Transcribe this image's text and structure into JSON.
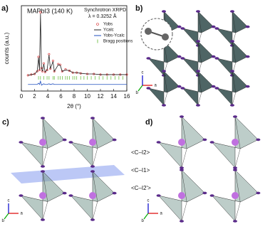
{
  "panels": [
    {
      "label": "a)"
    },
    {
      "label": "b)"
    },
    {
      "label": "c)"
    },
    {
      "label": "d)"
    }
  ],
  "chart_data": {
    "type": "line",
    "title": "MAPbI3 (140 K)",
    "annotations": [
      "Synchrotron XRPD",
      "λ = 0.3252 Å"
    ],
    "x_label": "2θ (°)",
    "y_label": "counts (a.u.)",
    "x": [
      1,
      1.5,
      2,
      2.4,
      2.6,
      2.75,
      2.9,
      3.05,
      3.2,
      3.4,
      3.6,
      3.9,
      4.2,
      4.4,
      4.8,
      5.0,
      5.6,
      5.9,
      6.2,
      6.7,
      7.3,
      7.8,
      8.4,
      9,
      10,
      11,
      12,
      13,
      14,
      15,
      16
    ],
    "series": [
      {
        "name": "Yobs",
        "color": "#d62728",
        "values": [
          0.04,
          0.05,
          0.06,
          0.1,
          0.32,
          0.12,
          1.0,
          0.15,
          0.1,
          0.22,
          0.09,
          0.12,
          0.36,
          0.14,
          0.26,
          0.1,
          0.21,
          0.2,
          0.1,
          0.13,
          0.11,
          0.08,
          0.08,
          0.07,
          0.06,
          0.06,
          0.05,
          0.05,
          0.05,
          0.05,
          0.05
        ]
      },
      {
        "name": "Ycalc",
        "color": "#222222",
        "values": [
          0.04,
          0.05,
          0.06,
          0.1,
          0.31,
          0.12,
          0.98,
          0.15,
          0.1,
          0.21,
          0.09,
          0.12,
          0.35,
          0.14,
          0.25,
          0.1,
          0.2,
          0.19,
          0.1,
          0.12,
          0.11,
          0.08,
          0.08,
          0.07,
          0.06,
          0.06,
          0.05,
          0.05,
          0.05,
          0.05,
          0.05
        ]
      },
      {
        "name": "Yobs-Ycalc",
        "color": "#1f4fbf",
        "values": [
          -0.1,
          -0.1,
          -0.1,
          -0.1,
          -0.08,
          -0.1,
          -0.05,
          -0.11,
          -0.1,
          -0.09,
          -0.1,
          -0.1,
          -0.09,
          -0.1,
          -0.09,
          -0.1,
          -0.1,
          -0.1,
          -0.1,
          -0.1,
          -0.1,
          -0.1,
          -0.1,
          -0.1,
          -0.1,
          -0.1,
          -0.1,
          -0.1,
          -0.1,
          -0.1,
          -0.1
        ]
      }
    ],
    "bragg": {
      "name": "Bragg positions",
      "color": "#5cb82e",
      "x": [
        2.6,
        2.9,
        3.4,
        3.9,
        4.2,
        4.8,
        5.0,
        5.6,
        5.9,
        6.2,
        6.7,
        7.0,
        7.3,
        7.8,
        8.1,
        8.4,
        9.0,
        9.5,
        10.0,
        10.6,
        11.2,
        11.8,
        12.4,
        13.0,
        13.6,
        14.2,
        14.8,
        15.4
      ],
      "values": [
        0.0,
        0.0,
        0.0,
        0.0,
        0.0,
        0.0,
        0.0,
        0.0,
        0.0,
        0.0,
        0.0,
        0.0,
        0.0,
        0.0,
        0.0,
        0.0,
        0.0,
        0.0,
        0.0,
        0.0,
        0.0,
        0.0,
        0.0,
        0.0,
        0.0,
        0.0,
        0.0,
        0.0
      ]
    },
    "xlim": [
      0,
      16
    ],
    "xticks": [
      0,
      2,
      4,
      6,
      8,
      10,
      12,
      14,
      16
    ],
    "ylim": [
      -0.2,
      1.1
    ]
  },
  "bond_labels": [
    "<C–I2>",
    "<C–I1>",
    "<C–I2'>"
  ],
  "axes_letters": [
    "a",
    "b",
    "c"
  ]
}
